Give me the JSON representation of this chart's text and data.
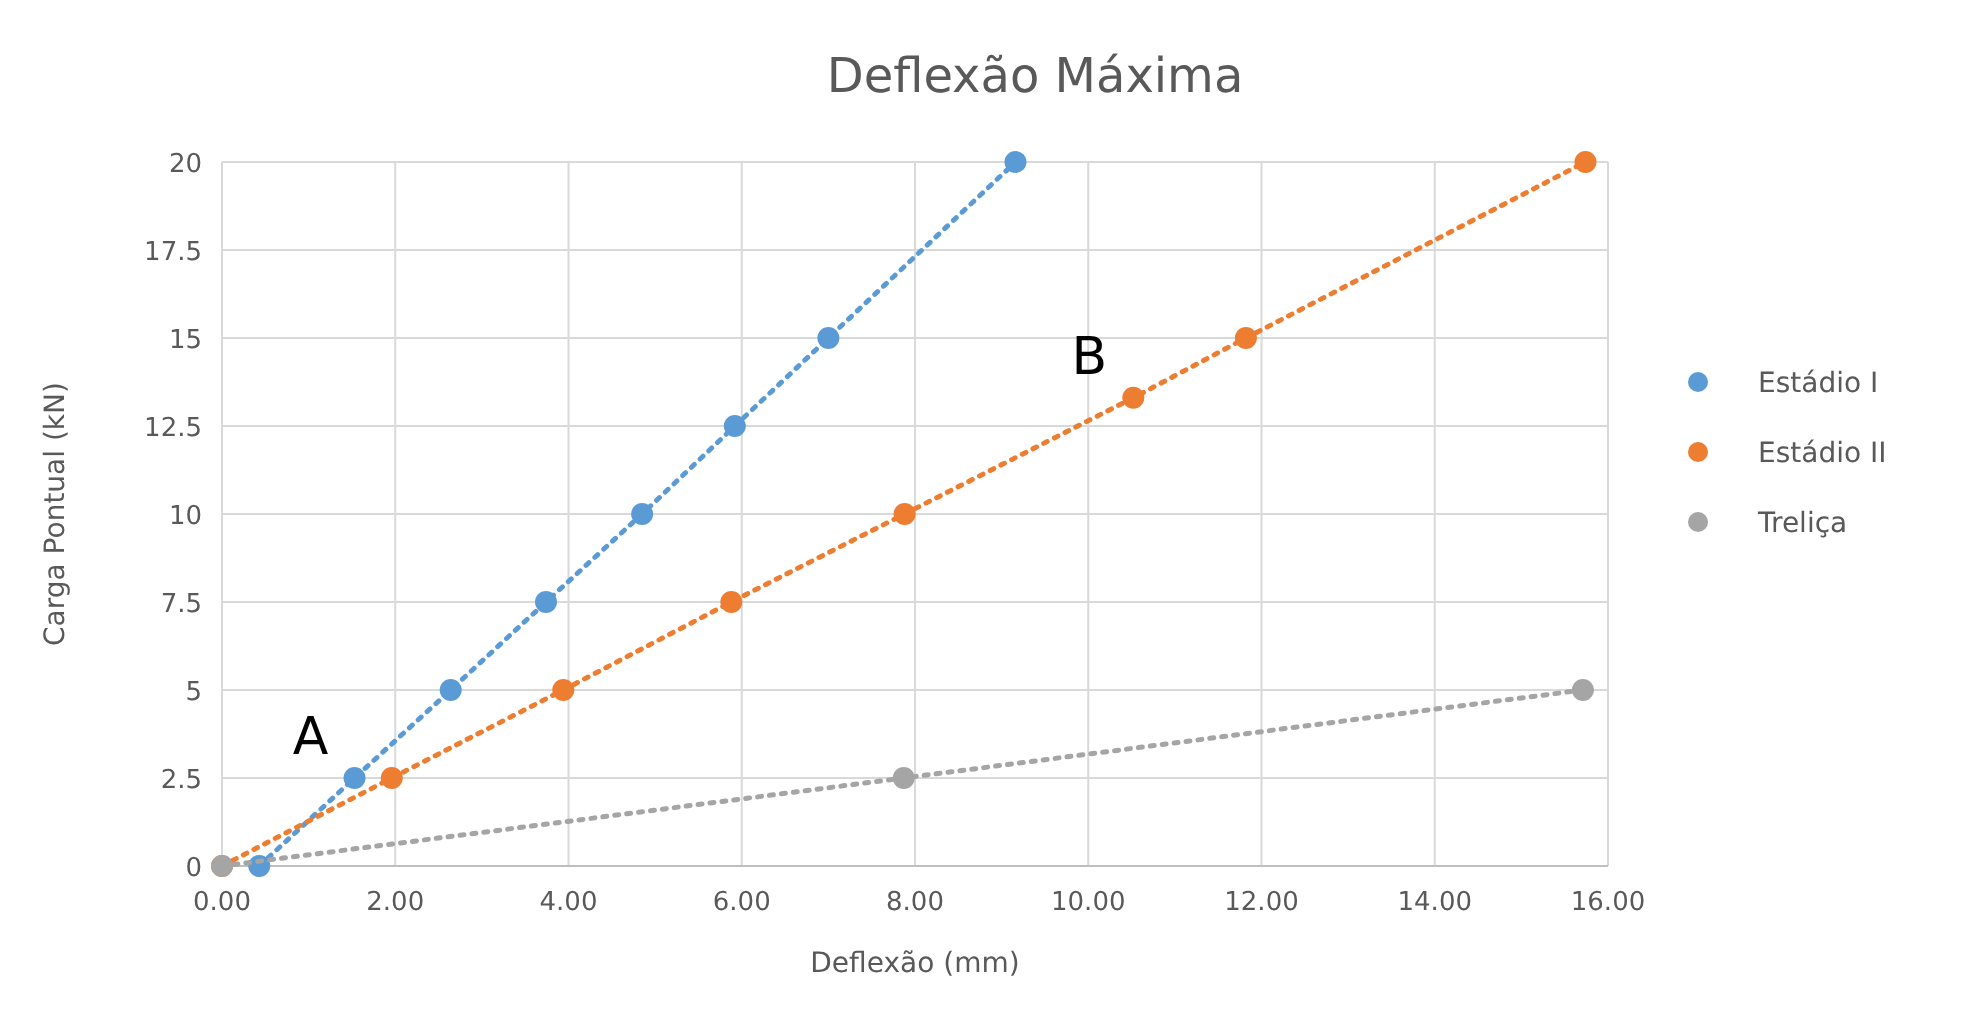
{
  "chart_data": {
    "type": "line",
    "title": "Deflexão Máxima",
    "xlabel": "Deflexão (mm)",
    "ylabel": "Carga Pontual (kN)",
    "xlim": [
      0,
      16
    ],
    "xticks": [
      {
        "value": 0,
        "label": "0.00"
      },
      {
        "value": 2,
        "label": "2.00"
      },
      {
        "value": 4,
        "label": "4.00"
      },
      {
        "value": 6,
        "label": "6.00"
      },
      {
        "value": 8,
        "label": "8.00"
      },
      {
        "value": 10,
        "label": "10.00"
      },
      {
        "value": 12,
        "label": "12.00"
      },
      {
        "value": 14,
        "label": "14.00"
      },
      {
        "value": 16,
        "label": "16.00"
      }
    ],
    "ylim": [
      0,
      20
    ],
    "yticks": [
      0,
      2.5,
      5,
      7.5,
      10,
      12.5,
      15,
      17.5,
      20
    ],
    "grid": true,
    "legend": "right",
    "marker": "circle",
    "line_style": "dotted",
    "series": [
      {
        "name": "Estádio I",
        "color": "#5b9bd5",
        "x": [
          0.43,
          1.53,
          2.64,
          3.74,
          4.85,
          5.92,
          7.0,
          9.16
        ],
        "values": [
          0,
          2.5,
          5,
          7.5,
          10,
          12.5,
          15,
          20
        ]
      },
      {
        "name": "Estádio II",
        "color": "#ed7d31",
        "x": [
          0,
          1.96,
          3.94,
          5.88,
          7.88,
          10.52,
          11.82,
          15.74
        ],
        "values": [
          0,
          2.5,
          5,
          7.5,
          10,
          13.3,
          15,
          20
        ]
      },
      {
        "name": "Treliça",
        "color": "#a5a5a5",
        "x": [
          0,
          7.87,
          15.71
        ],
        "values": [
          0,
          2.5,
          5
        ]
      }
    ],
    "annotations": [
      {
        "text": "A",
        "x": 1.53,
        "y": 2.5
      },
      {
        "text": "B",
        "x": 10.52,
        "y": 13.3
      }
    ]
  }
}
